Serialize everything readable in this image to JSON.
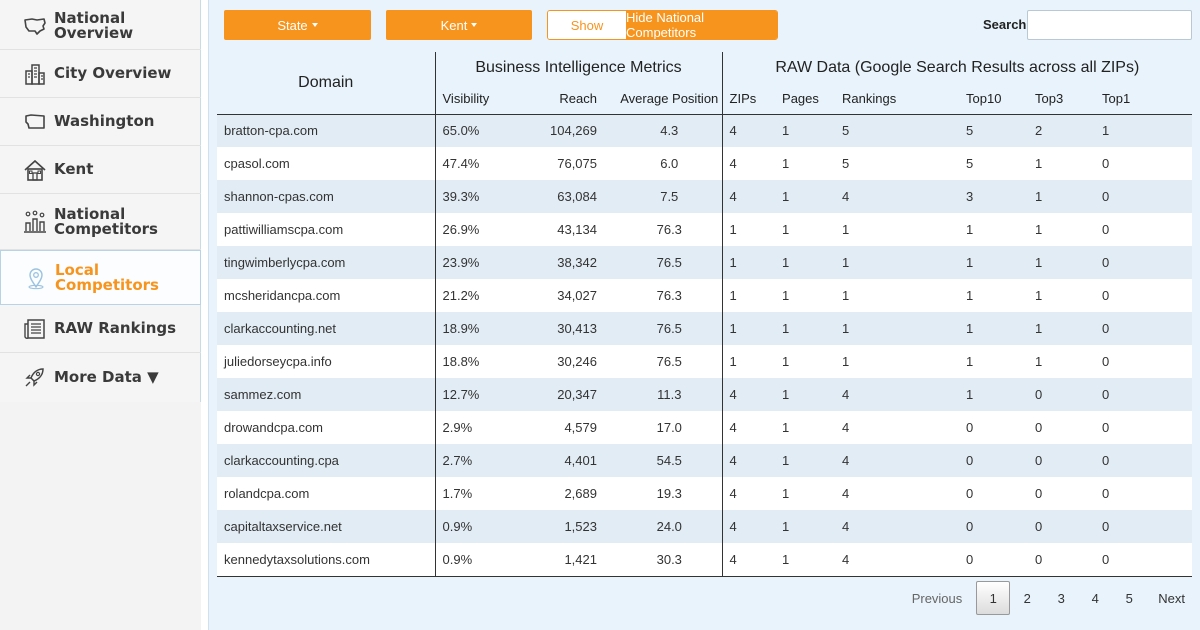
{
  "sidebar": {
    "items": [
      {
        "label": "National Overview",
        "icon": "usa-map-icon"
      },
      {
        "label": "City Overview",
        "icon": "city-buildings-icon"
      },
      {
        "label": "Washington",
        "icon": "state-map-icon"
      },
      {
        "label": "Kent",
        "icon": "house-icon"
      },
      {
        "label": "National Competitors",
        "icon": "bar-chart-people-icon"
      },
      {
        "label": "Local Competitors",
        "icon": "location-pin-icon"
      },
      {
        "label": "RAW Rankings",
        "icon": "newspaper-icon"
      },
      {
        "label": "More Data ▼",
        "icon": "rocket-icon"
      }
    ],
    "active": "Local Competitors"
  },
  "toolbar": {
    "state_label": "State",
    "city_label": "Kent",
    "show_label": "Show",
    "hide_label": "Hide National Competitors",
    "search_label": "Search:",
    "search_value": ""
  },
  "table": {
    "domain_header": "Domain",
    "group_bi": "Business Intelligence Metrics",
    "group_raw": "RAW Data (Google Search Results across all ZIPs)",
    "columns": [
      "Visibility",
      "Reach",
      "Average Position",
      "ZIPs",
      "Pages",
      "Rankings",
      "Top10",
      "Top3",
      "Top1"
    ],
    "rows": [
      [
        "bratton-cpa.com",
        "65.0%",
        "104,269",
        "4.3",
        "4",
        "1",
        "5",
        "5",
        "2",
        "1"
      ],
      [
        "cpasol.com",
        "47.4%",
        "76,075",
        "6.0",
        "4",
        "1",
        "5",
        "5",
        "1",
        "0"
      ],
      [
        "shannon-cpas.com",
        "39.3%",
        "63,084",
        "7.5",
        "4",
        "1",
        "4",
        "3",
        "1",
        "0"
      ],
      [
        "pattiwilliamscpa.com",
        "26.9%",
        "43,134",
        "76.3",
        "1",
        "1",
        "1",
        "1",
        "1",
        "0"
      ],
      [
        "tingwimberlycpa.com",
        "23.9%",
        "38,342",
        "76.5",
        "1",
        "1",
        "1",
        "1",
        "1",
        "0"
      ],
      [
        "mcsheridancpa.com",
        "21.2%",
        "34,027",
        "76.3",
        "1",
        "1",
        "1",
        "1",
        "1",
        "0"
      ],
      [
        "clarkaccounting.net",
        "18.9%",
        "30,413",
        "76.5",
        "1",
        "1",
        "1",
        "1",
        "1",
        "0"
      ],
      [
        "juliedorseycpa.info",
        "18.8%",
        "30,246",
        "76.5",
        "1",
        "1",
        "1",
        "1",
        "1",
        "0"
      ],
      [
        "sammez.com",
        "12.7%",
        "20,347",
        "11.3",
        "4",
        "1",
        "4",
        "1",
        "0",
        "0"
      ],
      [
        "drowandcpa.com",
        "2.9%",
        "4,579",
        "17.0",
        "4",
        "1",
        "4",
        "0",
        "0",
        "0"
      ],
      [
        "clarkaccounting.cpa",
        "2.7%",
        "4,401",
        "54.5",
        "4",
        "1",
        "4",
        "0",
        "0",
        "0"
      ],
      [
        "rolandcpa.com",
        "1.7%",
        "2,689",
        "19.3",
        "4",
        "1",
        "4",
        "0",
        "0",
        "0"
      ],
      [
        "capitaltaxservice.net",
        "0.9%",
        "1,523",
        "24.0",
        "4",
        "1",
        "4",
        "0",
        "0",
        "0"
      ],
      [
        "kennedytaxsolutions.com",
        "0.9%",
        "1,421",
        "30.3",
        "4",
        "1",
        "4",
        "0",
        "0",
        "0"
      ]
    ]
  },
  "pagination": {
    "previous": "Previous",
    "pages": [
      "1",
      "2",
      "3",
      "4",
      "5"
    ],
    "current": "1",
    "next": "Next"
  },
  "colors": {
    "accent": "#f7941d",
    "main_bg": "#e8f3fb",
    "row_stripe": "#e2ecf4"
  }
}
